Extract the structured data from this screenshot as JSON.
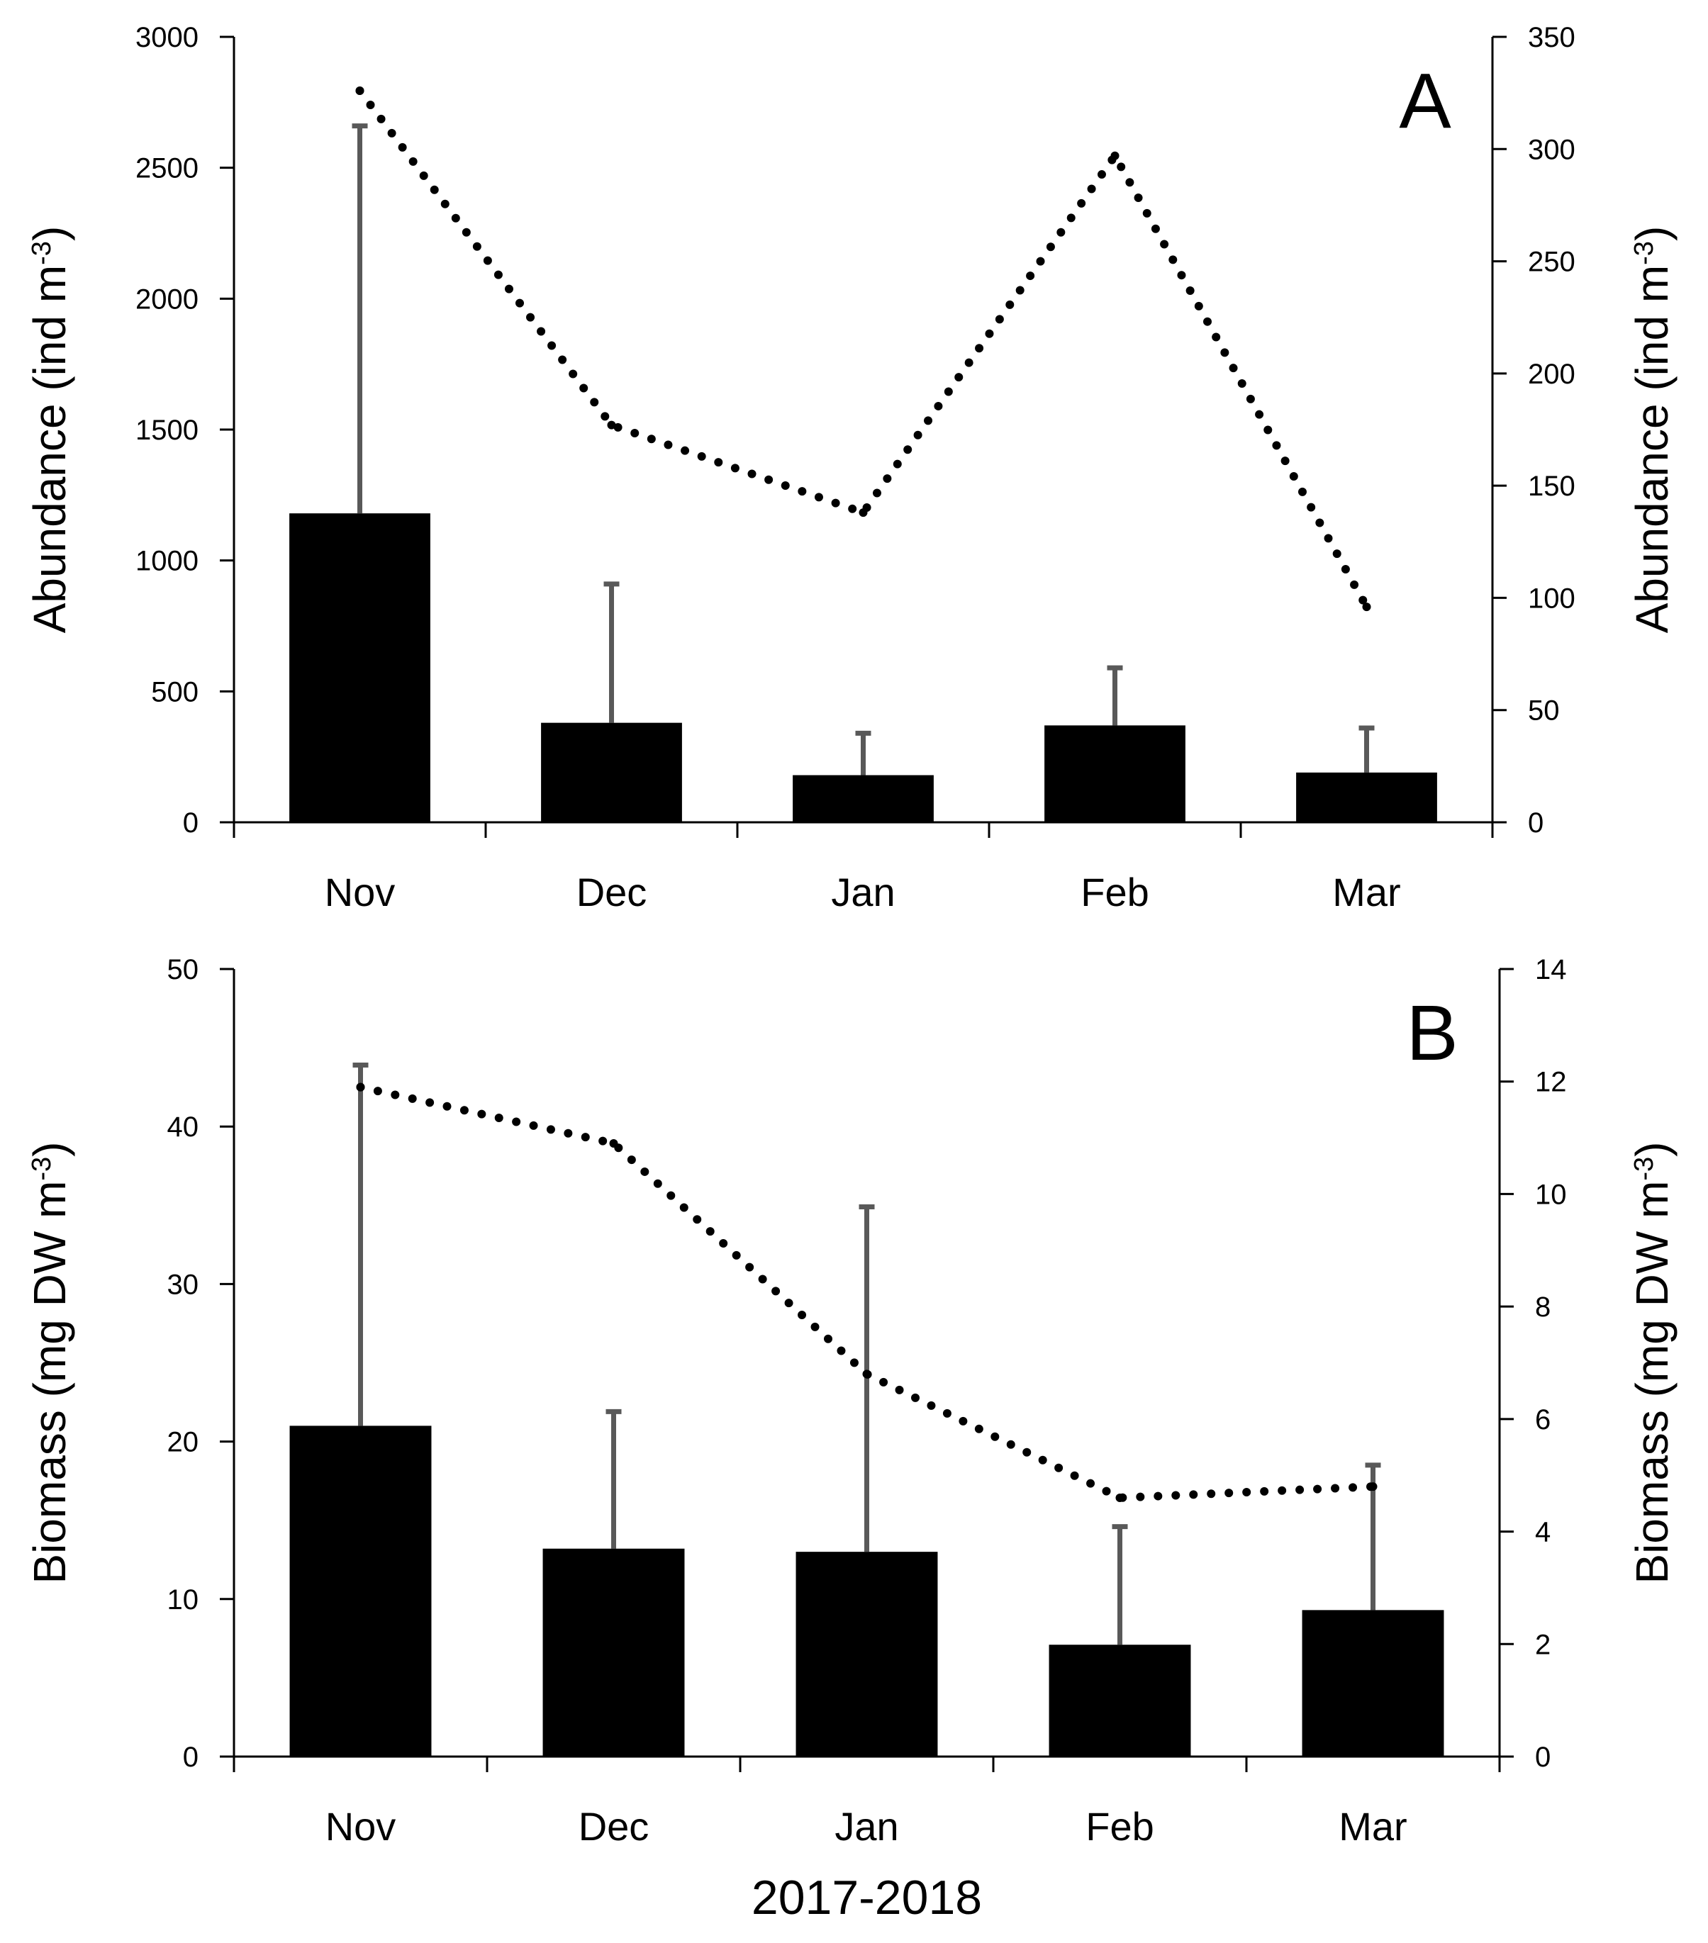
{
  "colors": {
    "bar": "#000000",
    "error_bar": "#595959",
    "line": "#000000",
    "axis": "#000000"
  },
  "chart_data": [
    {
      "type": "bar",
      "panel_label": "A",
      "categories": [
        "Nov",
        "Dec",
        "Jan",
        "Feb",
        "Mar"
      ],
      "series": [
        {
          "kind": "bar",
          "axis": "left",
          "values": [
            1180,
            380,
            180,
            370,
            190
          ],
          "error_upper": [
            2660,
            910,
            340,
            590,
            360
          ]
        },
        {
          "kind": "line",
          "style": "dotted",
          "axis": "right",
          "values": [
            326,
            177,
            138,
            297,
            96
          ]
        }
      ],
      "ylabel": "Abundance (ind m",
      "ylabel_sup": "-3",
      "ylabel_end": ")",
      "ylim": [
        0,
        3000
      ],
      "yticks": [
        "0",
        "500",
        "1000",
        "1500",
        "2000",
        "2500",
        "3000"
      ],
      "y2label": "Abundance (ind m",
      "y2label_sup": "-3",
      "y2label_end": ")",
      "y2lim": [
        0,
        350
      ],
      "y2ticks": [
        "0",
        "50",
        "100",
        "150",
        "200",
        "250",
        "300",
        "350"
      ],
      "grid": false,
      "legend": "none"
    },
    {
      "type": "bar",
      "panel_label": "B",
      "categories": [
        "Nov",
        "Dec",
        "Jan",
        "Feb",
        "Mar"
      ],
      "series": [
        {
          "kind": "bar",
          "axis": "left",
          "values": [
            21,
            13.2,
            13,
            7.1,
            9.3
          ],
          "error_upper": [
            43.9,
            21.9,
            34.9,
            14.6,
            18.5
          ]
        },
        {
          "kind": "line",
          "style": "dotted",
          "axis": "right",
          "values": [
            11.9,
            10.9,
            6.8,
            4.6,
            4.8
          ]
        }
      ],
      "ylabel": "Biomass (mg DW m",
      "ylabel_sup": "-3",
      "ylabel_end": ")",
      "ylim": [
        0,
        50
      ],
      "yticks": [
        "0",
        "10",
        "20",
        "30",
        "40",
        "50"
      ],
      "y2label": "Biomass (mg DW m",
      "y2label_sup": "-3",
      "y2label_end": ")",
      "y2lim": [
        0,
        14
      ],
      "y2ticks": [
        "0",
        "2",
        "4",
        "6",
        "8",
        "10",
        "12",
        "14"
      ],
      "xlabel": "2017-2018",
      "grid": false,
      "legend": "none"
    }
  ]
}
